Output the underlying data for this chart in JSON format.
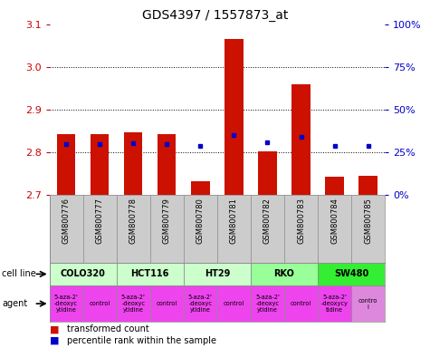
{
  "title": "GDS4397 / 1557873_at",
  "samples": [
    "GSM800776",
    "GSM800777",
    "GSM800778",
    "GSM800779",
    "GSM800780",
    "GSM800781",
    "GSM800782",
    "GSM800783",
    "GSM800784",
    "GSM800785"
  ],
  "red_values": [
    2.843,
    2.842,
    2.847,
    2.843,
    2.733,
    3.065,
    2.803,
    2.96,
    2.743,
    2.745
  ],
  "blue_y_vals": [
    2.82,
    2.82,
    2.822,
    2.82,
    2.814,
    2.84,
    2.823,
    2.837,
    2.815,
    2.815
  ],
  "ymin": 2.7,
  "ymax": 3.1,
  "yticks_left": [
    2.7,
    2.8,
    2.9,
    3.0,
    3.1
  ],
  "right_yticks_pct": [
    0,
    25,
    50,
    75,
    100
  ],
  "cell_lines": [
    {
      "name": "COLO320",
      "start": 0,
      "end": 2,
      "color": "#ccffcc"
    },
    {
      "name": "HCT116",
      "start": 2,
      "end": 4,
      "color": "#ccffcc"
    },
    {
      "name": "HT29",
      "start": 4,
      "end": 6,
      "color": "#ccffcc"
    },
    {
      "name": "RKO",
      "start": 6,
      "end": 8,
      "color": "#99ff99"
    },
    {
      "name": "SW480",
      "start": 8,
      "end": 10,
      "color": "#33ee33"
    }
  ],
  "agents": [
    {
      "name": "5-aza-2'\n-deoxyc\nytidine",
      "start": 0,
      "end": 1,
      "color": "#ee44ee"
    },
    {
      "name": "control",
      "start": 1,
      "end": 2,
      "color": "#ee44ee"
    },
    {
      "name": "5-aza-2'\n-deoxyc\nytidine",
      "start": 2,
      "end": 3,
      "color": "#ee44ee"
    },
    {
      "name": "control",
      "start": 3,
      "end": 4,
      "color": "#ee44ee"
    },
    {
      "name": "5-aza-2'\n-deoxyc\nytidine",
      "start": 4,
      "end": 5,
      "color": "#ee44ee"
    },
    {
      "name": "control",
      "start": 5,
      "end": 6,
      "color": "#ee44ee"
    },
    {
      "name": "5-aza-2'\n-deoxyc\nytidine",
      "start": 6,
      "end": 7,
      "color": "#ee44ee"
    },
    {
      "name": "control",
      "start": 7,
      "end": 8,
      "color": "#ee44ee"
    },
    {
      "name": "5-aza-2'\n-deoxycy\ntidine",
      "start": 8,
      "end": 9,
      "color": "#ee44ee"
    },
    {
      "name": "contro\nl",
      "start": 9,
      "end": 10,
      "color": "#dd88dd"
    }
  ],
  "bar_color": "#cc1100",
  "blue_color": "#0000cc",
  "bg_color": "#ffffff",
  "tick_color_left": "#cc0000",
  "tick_color_right": "#0000cc",
  "sample_bg": "#cccccc",
  "dotted_grid": [
    2.8,
    2.9,
    3.0
  ]
}
